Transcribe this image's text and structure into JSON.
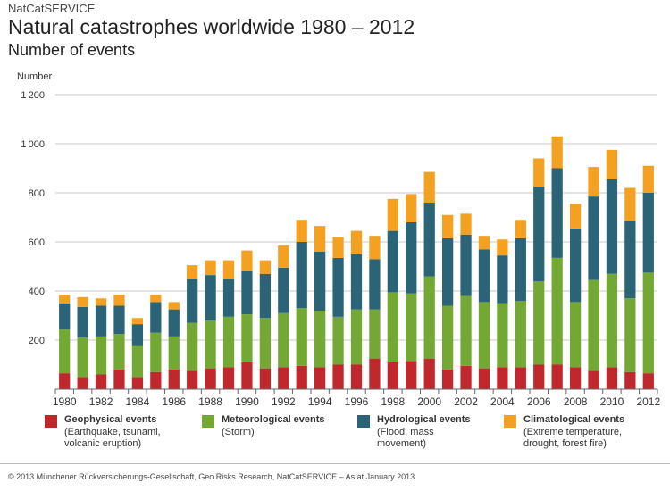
{
  "header": {
    "brand": "NatCatSERVICE",
    "title": "Natural catastrophes worldwide 1980 – 2012",
    "subtitle": "Number of events"
  },
  "legend": [
    {
      "name": "geophysical",
      "label": "Geophysical events",
      "desc": "(Earthquake, tsunami,\nvolcanic eruption)",
      "color": "#c0282d"
    },
    {
      "name": "meteorological",
      "label": "Meteorological events",
      "desc": "(Storm)",
      "color": "#74a834"
    },
    {
      "name": "hydrological",
      "label": "Hydrological events",
      "desc": "(Flood, mass\nmovement)",
      "color": "#2a6476"
    },
    {
      "name": "climatological",
      "label": "Climatological events",
      "desc": "(Extreme temperature,\ndrought, forest fire)",
      "color": "#f4a020"
    }
  ],
  "footer": "© 2013 Münchener Rückversicherungs-Gesellschaft, Geo Risks Research, NatCatSERVICE – As at January 2013",
  "chart_data": {
    "type": "bar",
    "stacked": true,
    "ylabel": "Number",
    "ylim": [
      0,
      1200
    ],
    "yticks": [
      200,
      400,
      600,
      800,
      1000,
      1200
    ],
    "ytick_labels": [
      "200",
      "400",
      "600",
      "800",
      "1 000",
      "1 200"
    ],
    "grid": true,
    "legend_position": "bottom",
    "categories": [
      "1980",
      "1981",
      "1982",
      "1983",
      "1984",
      "1985",
      "1986",
      "1987",
      "1988",
      "1989",
      "1990",
      "1991",
      "1992",
      "1993",
      "1994",
      "1995",
      "1996",
      "1997",
      "1998",
      "1999",
      "2000",
      "2001",
      "2002",
      "2003",
      "2004",
      "2005",
      "2006",
      "2007",
      "2008",
      "2009",
      "2010",
      "2011",
      "2012"
    ],
    "xtick_labels": [
      "1980",
      "1982",
      "1984",
      "1986",
      "1988",
      "1990",
      "1992",
      "1994",
      "1996",
      "1998",
      "2000",
      "2002",
      "2004",
      "2006",
      "2008",
      "2010",
      "2012"
    ],
    "series": [
      {
        "name": "Geophysical events",
        "color": "#c0282d",
        "values": [
          65,
          50,
          60,
          80,
          50,
          70,
          80,
          75,
          85,
          90,
          110,
          85,
          90,
          95,
          90,
          100,
          100,
          125,
          110,
          115,
          125,
          80,
          95,
          85,
          90,
          90,
          100,
          100,
          90,
          75,
          90,
          70,
          65
        ]
      },
      {
        "name": "Meteorological events",
        "color": "#74a834",
        "values": [
          180,
          160,
          155,
          145,
          125,
          160,
          135,
          195,
          195,
          205,
          195,
          205,
          220,
          235,
          230,
          195,
          225,
          200,
          285,
          275,
          335,
          260,
          285,
          270,
          260,
          270,
          340,
          435,
          265,
          370,
          380,
          300,
          410
        ]
      },
      {
        "name": "Hydrological events",
        "color": "#2a6476",
        "values": [
          105,
          125,
          125,
          115,
          90,
          125,
          110,
          180,
          185,
          155,
          175,
          180,
          185,
          270,
          240,
          240,
          225,
          205,
          250,
          290,
          300,
          275,
          250,
          215,
          195,
          255,
          385,
          365,
          300,
          340,
          385,
          315,
          325
        ]
      },
      {
        "name": "Climatological events",
        "color": "#f4a020",
        "values": [
          35,
          40,
          30,
          45,
          25,
          30,
          30,
          55,
          60,
          75,
          85,
          55,
          90,
          90,
          105,
          85,
          95,
          95,
          130,
          115,
          125,
          95,
          85,
          55,
          65,
          75,
          115,
          130,
          100,
          120,
          120,
          135,
          110
        ]
      }
    ]
  }
}
